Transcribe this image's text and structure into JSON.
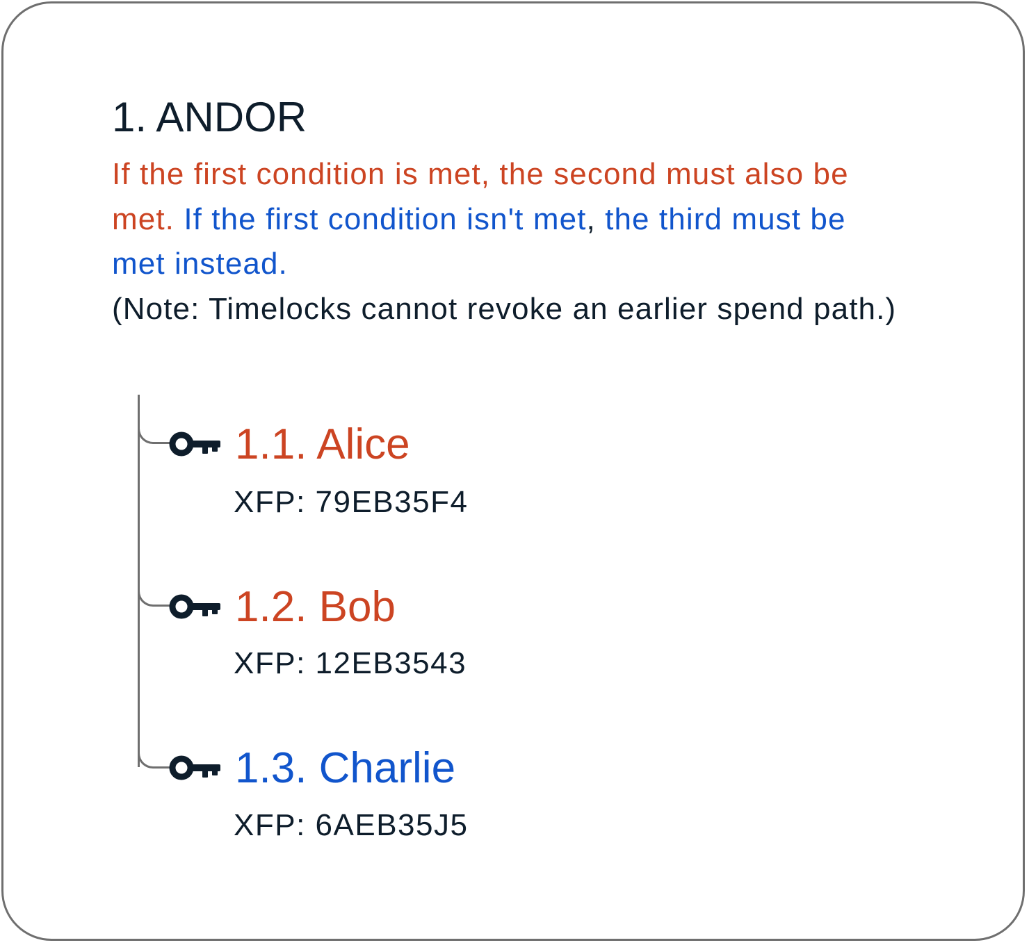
{
  "policy": {
    "title": "1. ANDOR",
    "description": {
      "first_condition_text": "If the first condition is met, the second must also be met.",
      "second_condition_text": "If the first condition isn't met",
      "comma": ",",
      "second_condition_tail": "the third must be met instead.",
      "note": "(Note: Timelocks cannot revoke an earlier spend path.)"
    },
    "colors": {
      "primary_branch": "#cc4422",
      "alternate_branch": "#1155cc",
      "text": "#0e1d2b",
      "border": "#6f6f6f"
    },
    "keys": [
      {
        "name": "1.1. Alice",
        "xfp": "XFP: 79EB35F4",
        "icon": "key-icon",
        "color": "#cc4422"
      },
      {
        "name": "1.2. Bob",
        "xfp": "XFP: 12EB3543",
        "icon": "key-icon",
        "color": "#cc4422"
      },
      {
        "name": "1.3. Charlie",
        "xfp": "XFP: 6AEB35J5",
        "icon": "key-icon",
        "color": "#1155cc"
      }
    ]
  }
}
